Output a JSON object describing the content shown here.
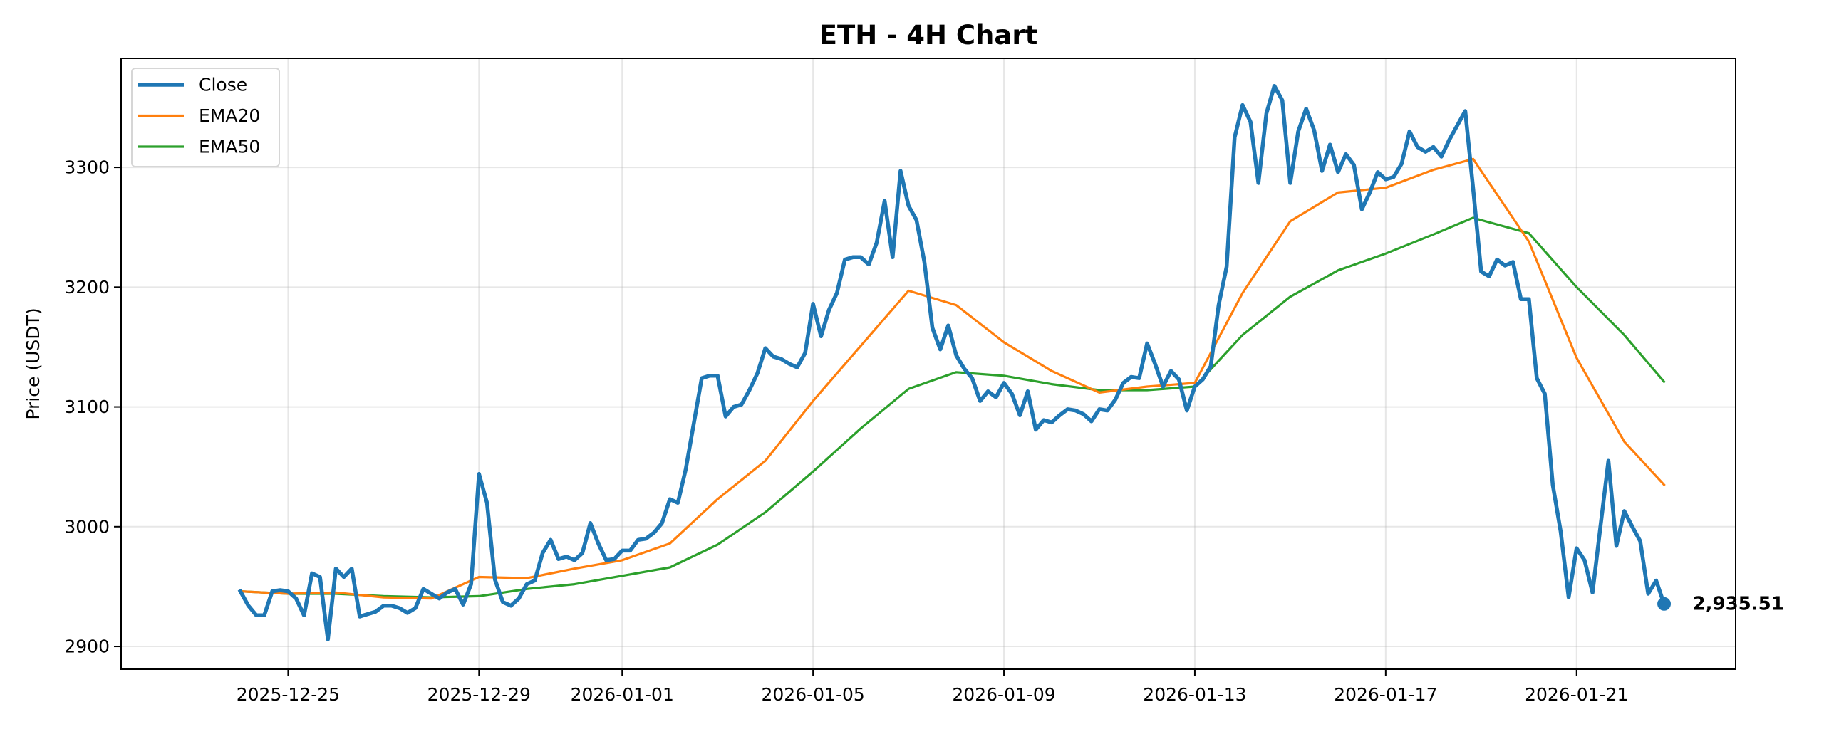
{
  "chart_data": {
    "type": "line",
    "title": "ETH - 4H Chart",
    "xlabel": "",
    "ylabel": "Price (USDT)",
    "xlim": [
      "2025-12-21 12:00",
      "2026-01-24 08:00"
    ],
    "ylim": [
      2881,
      3391
    ],
    "grid": true,
    "legend_placement": "top-left",
    "xticks": [
      {
        "date": "2025-12-25 00:00",
        "label": "2025-12-25"
      },
      {
        "date": "2025-12-29 00:00",
        "label": "2025-12-29"
      },
      {
        "date": "2026-01-01 00:00",
        "label": "2026-01-01"
      },
      {
        "date": "2026-01-05 00:00",
        "label": "2026-01-05"
      },
      {
        "date": "2026-01-09 00:00",
        "label": "2026-01-09"
      },
      {
        "date": "2026-01-13 00:00",
        "label": "2026-01-13"
      },
      {
        "date": "2026-01-17 00:00",
        "label": "2026-01-17"
      },
      {
        "date": "2026-01-21 00:00",
        "label": "2026-01-21"
      }
    ],
    "yticks": [
      {
        "value": 2900,
        "label": "2900"
      },
      {
        "value": 3000,
        "label": "3000"
      },
      {
        "value": 3100,
        "label": "3100"
      },
      {
        "value": 3200,
        "label": "3200"
      },
      {
        "value": 3300,
        "label": "3300"
      }
    ],
    "last_value_label": "2,935.51",
    "series": [
      {
        "name": "Close",
        "color": "#1f77b4",
        "x": [
          "2025-12-24 00:00",
          "2025-12-24 04:00",
          "2025-12-24 08:00",
          "2025-12-24 12:00",
          "2025-12-24 16:00",
          "2025-12-24 20:00",
          "2025-12-25 00:00",
          "2025-12-25 04:00",
          "2025-12-25 08:00",
          "2025-12-25 12:00",
          "2025-12-25 16:00",
          "2025-12-25 20:00",
          "2025-12-26 00:00",
          "2025-12-26 04:00",
          "2025-12-26 08:00",
          "2025-12-26 12:00",
          "2025-12-26 16:00",
          "2025-12-26 20:00",
          "2025-12-27 00:00",
          "2025-12-27 04:00",
          "2025-12-27 08:00",
          "2025-12-27 12:00",
          "2025-12-27 16:00",
          "2025-12-27 20:00",
          "2025-12-28 00:00",
          "2025-12-28 04:00",
          "2025-12-28 08:00",
          "2025-12-28 12:00",
          "2025-12-28 16:00",
          "2025-12-28 20:00",
          "2025-12-29 00:00",
          "2025-12-29 04:00",
          "2025-12-29 08:00",
          "2025-12-29 12:00",
          "2025-12-29 16:00",
          "2025-12-29 20:00",
          "2025-12-30 00:00",
          "2025-12-30 04:00",
          "2025-12-30 08:00",
          "2025-12-30 12:00",
          "2025-12-30 16:00",
          "2025-12-30 20:00",
          "2025-12-31 00:00",
          "2025-12-31 04:00",
          "2025-12-31 08:00",
          "2025-12-31 12:00",
          "2025-12-31 16:00",
          "2025-12-31 20:00",
          "2026-01-01 00:00",
          "2026-01-01 04:00",
          "2026-01-01 08:00",
          "2026-01-01 12:00",
          "2026-01-01 16:00",
          "2026-01-01 20:00",
          "2026-01-02 00:00",
          "2026-01-02 04:00",
          "2026-01-02 08:00",
          "2026-01-02 12:00",
          "2026-01-02 16:00",
          "2026-01-02 20:00",
          "2026-01-03 00:00",
          "2026-01-03 04:00",
          "2026-01-03 08:00",
          "2026-01-03 12:00",
          "2026-01-03 16:00",
          "2026-01-03 20:00",
          "2026-01-04 00:00",
          "2026-01-04 04:00",
          "2026-01-04 08:00",
          "2026-01-04 12:00",
          "2026-01-04 16:00",
          "2026-01-04 20:00",
          "2026-01-05 00:00",
          "2026-01-05 04:00",
          "2026-01-05 08:00",
          "2026-01-05 12:00",
          "2026-01-05 16:00",
          "2026-01-05 20:00",
          "2026-01-06 00:00",
          "2026-01-06 04:00",
          "2026-01-06 08:00",
          "2026-01-06 12:00",
          "2026-01-06 16:00",
          "2026-01-06 20:00",
          "2026-01-07 00:00",
          "2026-01-07 04:00",
          "2026-01-07 08:00",
          "2026-01-07 12:00",
          "2026-01-07 16:00",
          "2026-01-07 20:00",
          "2026-01-08 00:00",
          "2026-01-08 04:00",
          "2026-01-08 08:00",
          "2026-01-08 12:00",
          "2026-01-08 16:00",
          "2026-01-08 20:00",
          "2026-01-09 00:00",
          "2026-01-09 04:00",
          "2026-01-09 08:00",
          "2026-01-09 12:00",
          "2026-01-09 16:00",
          "2026-01-09 20:00",
          "2026-01-10 00:00",
          "2026-01-10 04:00",
          "2026-01-10 08:00",
          "2026-01-10 12:00",
          "2026-01-10 16:00",
          "2026-01-10 20:00",
          "2026-01-11 00:00",
          "2026-01-11 04:00",
          "2026-01-11 08:00",
          "2026-01-11 12:00",
          "2026-01-11 16:00",
          "2026-01-11 20:00",
          "2026-01-12 00:00",
          "2026-01-12 04:00",
          "2026-01-12 08:00",
          "2026-01-12 12:00",
          "2026-01-12 16:00",
          "2026-01-12 20:00",
          "2026-01-13 00:00",
          "2026-01-13 04:00",
          "2026-01-13 08:00",
          "2026-01-13 12:00",
          "2026-01-13 16:00",
          "2026-01-13 20:00",
          "2026-01-14 00:00",
          "2026-01-14 04:00",
          "2026-01-14 08:00",
          "2026-01-14 12:00",
          "2026-01-14 16:00",
          "2026-01-14 20:00",
          "2026-01-15 00:00",
          "2026-01-15 04:00",
          "2026-01-15 08:00",
          "2026-01-15 12:00",
          "2026-01-15 16:00",
          "2026-01-15 20:00",
          "2026-01-16 00:00",
          "2026-01-16 04:00",
          "2026-01-16 08:00",
          "2026-01-16 12:00",
          "2026-01-16 16:00",
          "2026-01-16 20:00",
          "2026-01-17 00:00",
          "2026-01-17 04:00",
          "2026-01-17 08:00",
          "2026-01-17 12:00",
          "2026-01-17 16:00",
          "2026-01-17 20:00",
          "2026-01-18 00:00",
          "2026-01-18 04:00",
          "2026-01-18 08:00",
          "2026-01-18 12:00",
          "2026-01-18 16:00",
          "2026-01-18 20:00",
          "2026-01-19 00:00",
          "2026-01-19 04:00",
          "2026-01-19 08:00",
          "2026-01-19 12:00",
          "2026-01-19 16:00",
          "2026-01-19 20:00",
          "2026-01-20 00:00",
          "2026-01-20 04:00",
          "2026-01-20 08:00",
          "2026-01-20 12:00",
          "2026-01-20 16:00",
          "2026-01-20 20:00",
          "2026-01-21 00:00",
          "2026-01-21 04:00",
          "2026-01-21 08:00",
          "2026-01-21 12:00",
          "2026-01-21 16:00",
          "2026-01-21 20:00",
          "2026-01-22 00:00",
          "2026-01-22 04:00",
          "2026-01-22 08:00",
          "2026-01-22 12:00",
          "2026-01-22 16:00",
          "2026-01-22 20:00"
        ],
        "values": [
          2946,
          2934,
          2926,
          2926,
          2946,
          2947,
          2946,
          2940,
          2926,
          2961,
          2958,
          2906,
          2965,
          2958,
          2965,
          2925,
          2927,
          2929,
          2934,
          2934,
          2932,
          2928,
          2932,
          2948,
          2944,
          2940,
          2945,
          2948,
          2935,
          2952,
          3044,
          3020,
          2956,
          2937,
          2934,
          2940,
          2952,
          2955,
          2978,
          2989,
          2973,
          2975,
          2972,
          2978,
          3003,
          2986,
          2972,
          2973,
          2980,
          2980,
          2989,
          2990,
          2995,
          3003,
          3023,
          3020,
          3048,
          3086,
          3124,
          3126,
          3126,
          3092,
          3100,
          3102,
          3114,
          3128,
          3149,
          3142,
          3140,
          3136,
          3133,
          3145,
          3186,
          3159,
          3181,
          3195,
          3223,
          3225,
          3225,
          3219,
          3237,
          3272,
          3225,
          3297,
          3268,
          3256,
          3221,
          3166,
          3148,
          3168,
          3143,
          3132,
          3124,
          3105,
          3113,
          3108,
          3120,
          3111,
          3093,
          3113,
          3081,
          3089,
          3087,
          3093,
          3098,
          3097,
          3094,
          3088,
          3098,
          3097,
          3106,
          3120,
          3125,
          3124,
          3153,
          3136,
          3117,
          3130,
          3123,
          3097,
          3117,
          3123,
          3134,
          3185,
          3217,
          3325,
          3352,
          3338,
          3287,
          3345,
          3368,
          3356,
          3287,
          3330,
          3349,
          3331,
          3297,
          3319,
          3296,
          3311,
          3302,
          3265,
          3279,
          3296,
          3290,
          3292,
          3303,
          3330,
          3317,
          3313,
          3317,
          3309,
          3323,
          3335,
          3347,
          3282,
          3213,
          3209,
          3223,
          3218,
          3221,
          3190,
          3190,
          3124,
          3111,
          3035,
          2996,
          2941,
          2982,
          2972,
          2945,
          3000,
          3055,
          2984,
          3013,
          3000,
          2988,
          2944,
          2955,
          2935.51
        ]
      },
      {
        "name": "EMA20",
        "color": "#ff7f0e",
        "x": [
          "2025-12-24 00:00",
          "2025-12-25 00:00",
          "2025-12-26 00:00",
          "2025-12-27 00:00",
          "2025-12-28 00:00",
          "2025-12-29 00:00",
          "2025-12-30 00:00",
          "2025-12-31 00:00",
          "2026-01-01 00:00",
          "2026-01-02 00:00",
          "2026-01-03 00:00",
          "2026-01-04 00:00",
          "2026-01-05 00:00",
          "2026-01-06 00:00",
          "2026-01-07 00:00",
          "2026-01-08 00:00",
          "2026-01-09 00:00",
          "2026-01-10 00:00",
          "2026-01-11 00:00",
          "2026-01-12 00:00",
          "2026-01-13 00:00",
          "2026-01-14 00:00",
          "2026-01-15 00:00",
          "2026-01-16 00:00",
          "2026-01-17 00:00",
          "2026-01-18 00:00",
          "2026-01-18 20:00",
          "2026-01-19 00:00",
          "2026-01-20 00:00",
          "2026-01-21 00:00",
          "2026-01-22 00:00",
          "2026-01-22 20:00"
        ],
        "values": [
          2946,
          2944,
          2945,
          2941,
          2940,
          2958,
          2957,
          2965,
          2972,
          2986,
          3023,
          3055,
          3105,
          3151,
          3197,
          3185,
          3154,
          3130,
          3112,
          3117,
          3120,
          3195,
          3255,
          3279,
          3283,
          3298,
          3307,
          3297,
          3238,
          3141,
          3071,
          3035
        ]
      },
      {
        "name": "EMA50",
        "color": "#2ca02c",
        "x": [
          "2025-12-24 00:00",
          "2025-12-25 00:00",
          "2025-12-26 00:00",
          "2025-12-27 00:00",
          "2025-12-28 00:00",
          "2025-12-29 00:00",
          "2025-12-30 00:00",
          "2025-12-31 00:00",
          "2026-01-01 00:00",
          "2026-01-02 00:00",
          "2026-01-03 00:00",
          "2026-01-04 00:00",
          "2026-01-05 00:00",
          "2026-01-06 00:00",
          "2026-01-07 00:00",
          "2026-01-08 00:00",
          "2026-01-09 00:00",
          "2026-01-10 00:00",
          "2026-01-11 00:00",
          "2026-01-12 00:00",
          "2026-01-13 00:00",
          "2026-01-14 00:00",
          "2026-01-15 00:00",
          "2026-01-16 00:00",
          "2026-01-17 00:00",
          "2026-01-18 00:00",
          "2026-01-18 20:00",
          "2026-01-19 00:00",
          "2026-01-20 00:00",
          "2026-01-21 00:00",
          "2026-01-22 00:00",
          "2026-01-22 20:00"
        ],
        "values": [
          2946,
          2944,
          2944,
          2942,
          2941,
          2942,
          2948,
          2952,
          2959,
          2966,
          2985,
          3012,
          3046,
          3082,
          3115,
          3129,
          3126,
          3119,
          3114,
          3114,
          3117,
          3160,
          3192,
          3214,
          3228,
          3244,
          3258,
          3256,
          3245,
          3200,
          3160,
          3121
        ]
      }
    ]
  }
}
